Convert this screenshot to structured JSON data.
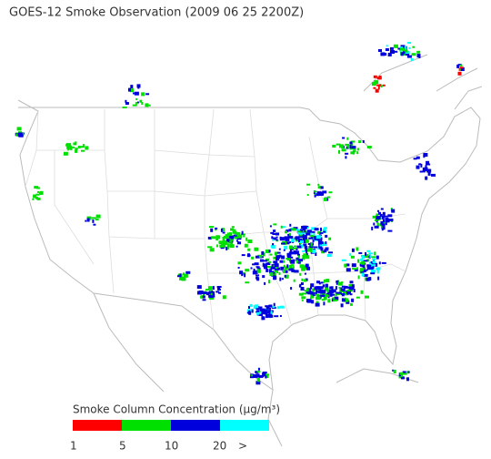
{
  "map": {
    "title": "GOES-12 Smoke Observation (2009 06 25  2200Z)"
  },
  "legend": {
    "title": "Smoke Column Concentration (μg/m³)",
    "colors": [
      "#ff0000",
      "#00e000",
      "#0000dd",
      "#00ffff"
    ],
    "ticks": [
      "1",
      "5",
      "10",
      "20",
      ">"
    ]
  }
}
